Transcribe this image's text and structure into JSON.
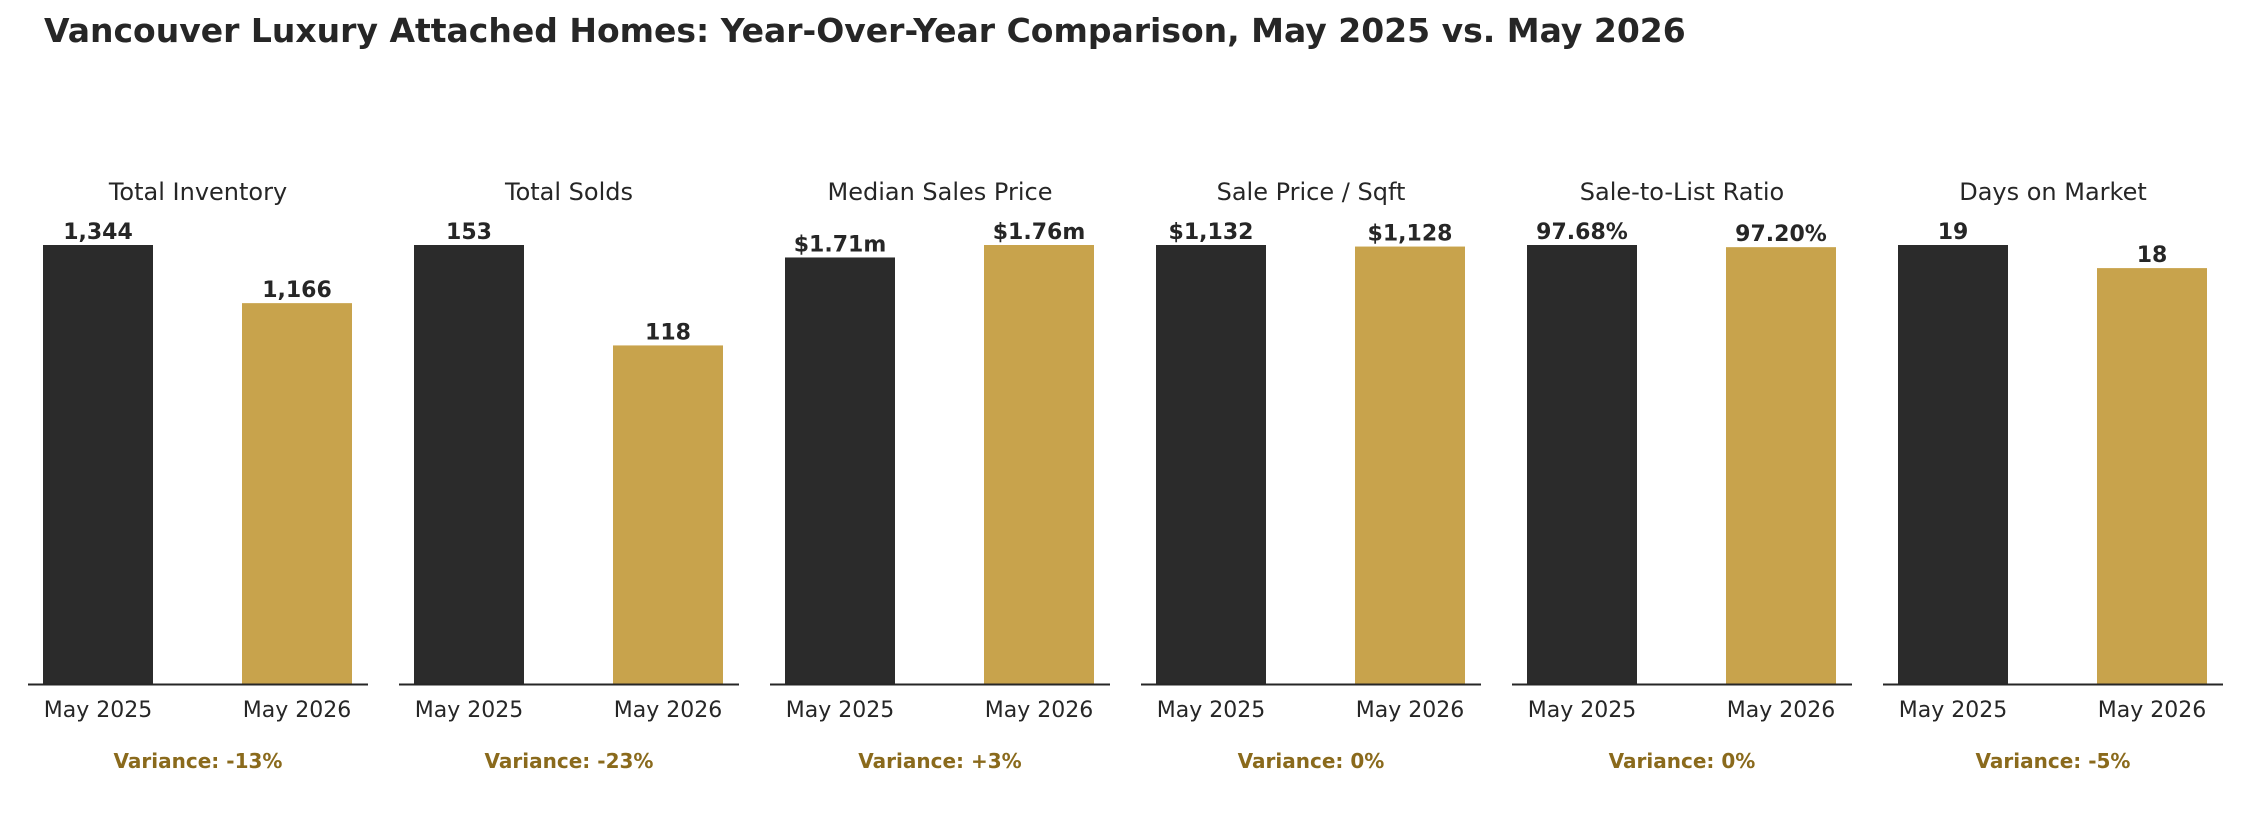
{
  "title": "Vancouver Luxury Attached Homes: Year-Over-Year Comparison, May 2025 vs. May 2026",
  "colors": {
    "may_2025": "#2b2b2b",
    "may_2026": "#c8a34c",
    "variance_text": "#8a6a1c",
    "text": "#262626"
  },
  "chart_data": [
    {
      "type": "bar",
      "title": "Total Inventory",
      "categories": [
        "May 2025",
        "May 2026"
      ],
      "values": [
        1344,
        1166
      ],
      "data_labels": [
        "1,344",
        "1,166"
      ],
      "variance": "Variance: -13%"
    },
    {
      "type": "bar",
      "title": "Total Solds",
      "categories": [
        "May 2025",
        "May 2026"
      ],
      "values": [
        153,
        118
      ],
      "data_labels": [
        "153",
        "118"
      ],
      "variance": "Variance: -23%"
    },
    {
      "type": "bar",
      "title": "Median Sales Price",
      "categories": [
        "May 2025",
        "May 2026"
      ],
      "values": [
        1710000,
        1760000
      ],
      "data_labels": [
        "$1.71m",
        "$1.76m"
      ],
      "variance": "Variance: +3%"
    },
    {
      "type": "bar",
      "title": "Sale Price / Sqft",
      "categories": [
        "May 2025",
        "May 2026"
      ],
      "values": [
        1132,
        1128
      ],
      "data_labels": [
        "$1,132",
        "$1,128"
      ],
      "variance": "Variance: 0%"
    },
    {
      "type": "bar",
      "title": "Sale-to-List Ratio",
      "categories": [
        "May 2025",
        "May 2026"
      ],
      "values": [
        97.68,
        97.2
      ],
      "data_labels": [
        "97.68%",
        "97.20%"
      ],
      "variance": "Variance: 0%"
    },
    {
      "type": "bar",
      "title": "Days on Market",
      "categories": [
        "May 2025",
        "May 2026"
      ],
      "values": [
        19,
        18
      ],
      "data_labels": [
        "19",
        "18"
      ],
      "variance": "Variance: -5%"
    }
  ]
}
